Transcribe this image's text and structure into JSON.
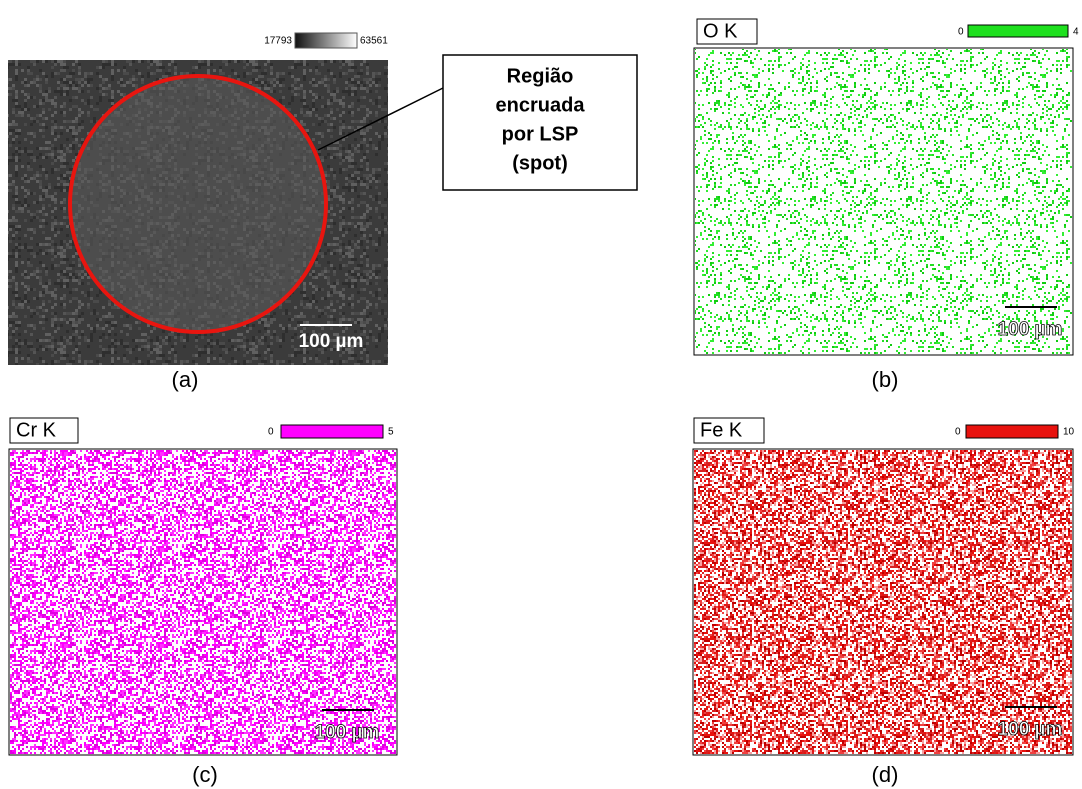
{
  "panel_a": {
    "scale_min": 17793,
    "scale_max": 63561,
    "callout": [
      "Região",
      "encruada",
      "por LSP",
      "(spot)"
    ],
    "scale_bar": "100 µm",
    "caption": "(a)"
  },
  "panel_b": {
    "element": "O K",
    "scale_min": 0,
    "scale_max": 4,
    "scale_bar": "100 µm",
    "caption": "(b)"
  },
  "panel_c": {
    "element": "Cr K",
    "scale_min": 0,
    "scale_max": 5,
    "scale_bar": "100 µm",
    "caption": "(c)"
  },
  "panel_d": {
    "element": "Fe K",
    "scale_min": 0,
    "scale_max": 10,
    "scale_bar": "100 µm",
    "caption": "(d)"
  }
}
